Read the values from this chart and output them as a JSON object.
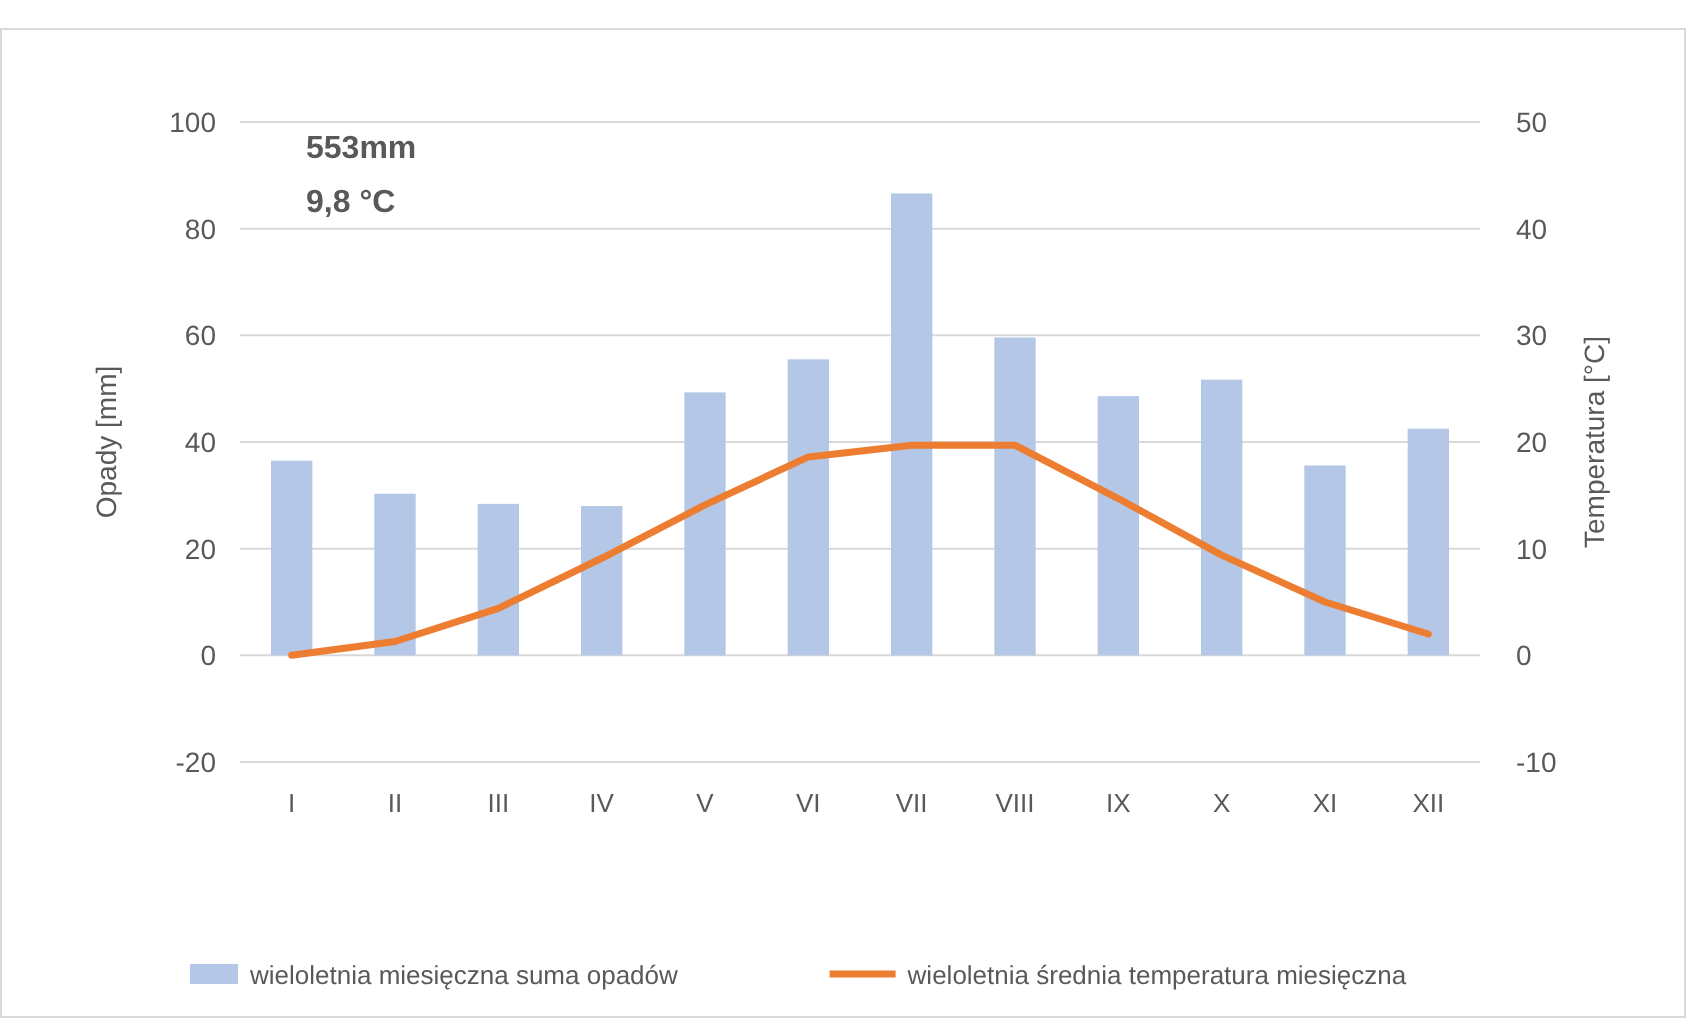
{
  "chart_data": {
    "type": "bar",
    "categories": [
      "I",
      "II",
      "III",
      "IV",
      "V",
      "VI",
      "VII",
      "VIII",
      "IX",
      "X",
      "XI",
      "XII"
    ],
    "series": [
      {
        "name": "wieloletnia miesięczna suma opadów",
        "color": "#b4c7e7",
        "values": [
          36.5,
          30.3,
          28.4,
          28.0,
          49.3,
          55.5,
          86.6,
          59.6,
          48.6,
          51.7,
          35.6,
          42.5
        ]
      },
      {
        "name": "wieloletnia średnia temperatura miesięczna",
        "type": "line",
        "axis": "y2",
        "color": "#ed7d31",
        "values": [
          0.0,
          1.3,
          4.4,
          9.1,
          14.1,
          18.6,
          19.7,
          19.7,
          14.7,
          9.4,
          5.0,
          2.0
        ]
      }
    ],
    "ylabel": "Opady [mm]",
    "y2label": "Temperatura [°C]",
    "ylim": [
      -20,
      100
    ],
    "yticks": [
      -20,
      0,
      20,
      40,
      60,
      80,
      100
    ],
    "y2lim": [
      -10,
      50
    ],
    "y2ticks": [
      -10,
      0,
      10,
      20,
      30,
      40,
      50
    ],
    "annotations": [
      "553mm",
      "9,8 °C"
    ],
    "grid": "y",
    "legend": "bottom",
    "marker": "none",
    "line_style": "solid"
  }
}
